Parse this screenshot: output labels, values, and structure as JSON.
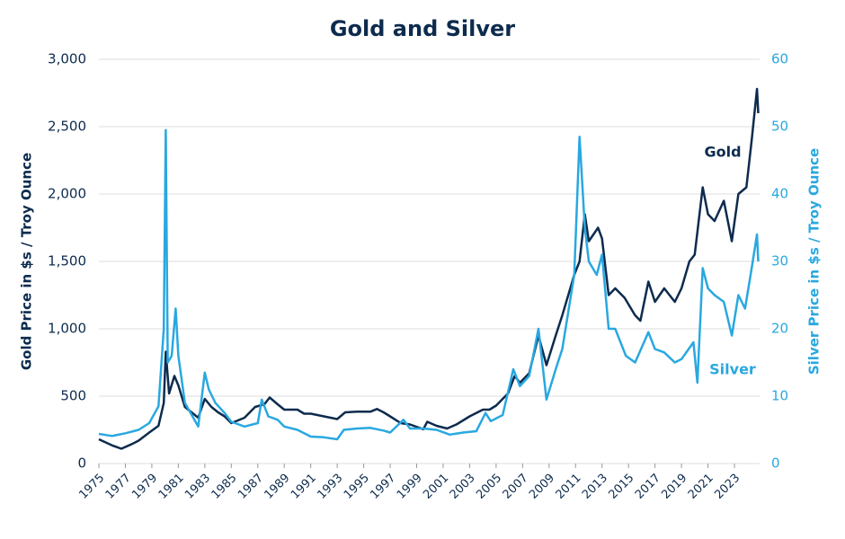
{
  "chart_data": {
    "type": "line",
    "title": "Gold and Silver",
    "y_label": "Gold Price in $s / Troy Ounce",
    "y2_label": "Silver Price in $s / Troy Ounce",
    "xlim": [
      1975,
      2024.9
    ],
    "xticks": [
      1975,
      1977,
      1979,
      1981,
      1983,
      1985,
      1987,
      1989,
      1991,
      1993,
      1995,
      1997,
      1999,
      2001,
      2003,
      2005,
      2007,
      2009,
      2011,
      2013,
      2015,
      2017,
      2019,
      2021,
      2023
    ],
    "ylim": [
      0,
      3000
    ],
    "yticks": [
      0,
      500,
      {
        "value": 1000,
        "label": "1,000"
      },
      {
        "value": 1500,
        "label": "1,500"
      },
      {
        "value": 2000,
        "label": "2,000"
      },
      {
        "value": 2500,
        "label": "2,500"
      },
      {
        "value": 3000,
        "label": "3,000"
      }
    ],
    "y2lim": [
      0,
      60
    ],
    "y2ticks": [
      0,
      10,
      20,
      30,
      40,
      50,
      60
    ],
    "grid": true,
    "series": [
      {
        "name": "Gold",
        "color": "#0d2b4e",
        "x": [
          1975.0,
          1976.0,
          1976.7,
          1977.5,
          1978.0,
          1978.8,
          1979.5,
          1979.9,
          1980.05,
          1980.3,
          1980.7,
          1981.0,
          1981.5,
          1982.5,
          1983.0,
          1983.5,
          1984.0,
          1984.5,
          1985.0,
          1985.5,
          1986.0,
          1986.8,
          1987.5,
          1987.9,
          1988.5,
          1989.0,
          1990.0,
          1990.5,
          1991.0,
          1992.0,
          1993.0,
          1993.6,
          1994.5,
          1995.5,
          1996.0,
          1996.5,
          1997.0,
          1997.8,
          1998.5,
          1999.5,
          1999.8,
          2000.5,
          2001.3,
          2002.0,
          2002.5,
          2003.0,
          2004.0,
          2004.5,
          2005.0,
          2005.9,
          2006.4,
          2006.8,
          2007.5,
          2008.2,
          2008.8,
          2009.5,
          2010.0,
          2010.9,
          2011.3,
          2011.7,
          2012.0,
          2012.7,
          2013.0,
          2013.5,
          2014.0,
          2014.7,
          2015.5,
          2015.9,
          2016.5,
          2017.0,
          2017.7,
          2018.5,
          2019.0,
          2019.6,
          2020.0,
          2020.6,
          2021.0,
          2021.5,
          2022.2,
          2022.8,
          2023.3,
          2023.9,
          2024.3,
          2024.7,
          2024.8
        ],
        "values": [
          180,
          135,
          110,
          145,
          170,
          230,
          280,
          450,
          830,
          520,
          650,
          580,
          420,
          340,
          480,
          420,
          380,
          350,
          300,
          320,
          340,
          420,
          440,
          490,
          440,
          400,
          400,
          370,
          370,
          350,
          330,
          380,
          385,
          385,
          405,
          380,
          350,
          300,
          290,
          255,
          310,
          280,
          260,
          290,
          320,
          350,
          400,
          400,
          430,
          520,
          650,
          600,
          670,
          950,
          730,
          950,
          1100,
          1400,
          1500,
          1850,
          1650,
          1750,
          1670,
          1250,
          1300,
          1230,
          1100,
          1060,
          1350,
          1200,
          1300,
          1200,
          1300,
          1500,
          1550,
          2050,
          1850,
          1800,
          1950,
          1650,
          2000,
          2050,
          2400,
          2780,
          2600
        ]
      },
      {
        "name": "Silver",
        "color": "#29a8e0",
        "axis": "y2",
        "x": [
          1975.0,
          1976.0,
          1977.0,
          1978.0,
          1978.8,
          1979.5,
          1979.9,
          1980.05,
          1980.2,
          1980.5,
          1980.8,
          1981.0,
          1981.5,
          1982.5,
          1983.0,
          1983.3,
          1983.8,
          1984.5,
          1985.0,
          1986.0,
          1987.0,
          1987.3,
          1987.8,
          1988.5,
          1989.0,
          1990.0,
          1991.0,
          1992.0,
          1993.0,
          1993.5,
          1994.5,
          1995.5,
          1996.5,
          1997.0,
          1998.0,
          1998.5,
          1999.5,
          2000.5,
          2001.5,
          2002.5,
          2003.5,
          2004.2,
          2004.6,
          2005.5,
          2006.3,
          2006.8,
          2007.5,
          2008.2,
          2008.8,
          2009.5,
          2010.0,
          2010.9,
          2011.3,
          2011.7,
          2012.0,
          2012.6,
          2013.0,
          2013.5,
          2014.0,
          2014.8,
          2015.5,
          2016.5,
          2017.0,
          2017.7,
          2018.5,
          2019.0,
          2019.9,
          2020.2,
          2020.6,
          2021.0,
          2021.5,
          2022.2,
          2022.8,
          2023.3,
          2023.8,
          2024.3,
          2024.7,
          2024.8
        ],
        "values": [
          4.4,
          4.1,
          4.5,
          5.0,
          6.0,
          8.5,
          20,
          49.5,
          15,
          16,
          23,
          16,
          9,
          5.5,
          13.5,
          11,
          9,
          7.5,
          6.2,
          5.5,
          6.0,
          9.5,
          7,
          6.5,
          5.5,
          5.0,
          4.0,
          3.9,
          3.6,
          5.0,
          5.2,
          5.3,
          4.9,
          4.6,
          6.5,
          5.2,
          5.2,
          5.0,
          4.3,
          4.6,
          4.8,
          7.5,
          6.3,
          7.2,
          14,
          11.5,
          13,
          20,
          9.5,
          14,
          17,
          28,
          48.5,
          35,
          30,
          28,
          31,
          20,
          20,
          16,
          15,
          19.5,
          17,
          16.5,
          15,
          15.5,
          18,
          12,
          29,
          26,
          25,
          24,
          19,
          25,
          23,
          29,
          34,
          30
        ]
      }
    ]
  }
}
